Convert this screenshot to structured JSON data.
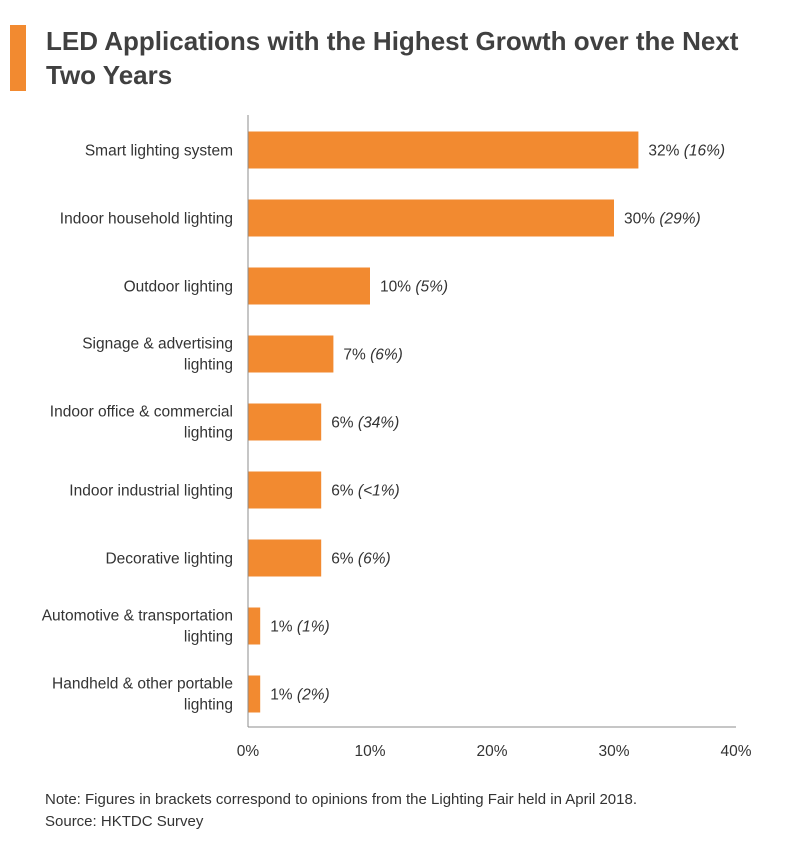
{
  "colors": {
    "accent": "#f28a30",
    "bar": "#f28a30",
    "axis": "#8c8c8c",
    "text": "#333333"
  },
  "title": "LED Applications with the Highest Growth over the Next Two Years",
  "chart_data": {
    "type": "bar",
    "orientation": "horizontal",
    "title": "LED Applications with the Highest Growth over the Next Two Years",
    "xlabel": "",
    "ylabel": "",
    "xlim": [
      0,
      40
    ],
    "xticks": [
      "0%",
      "10%",
      "20%",
      "30%",
      "40%"
    ],
    "grid": false,
    "categories": [
      [
        "Smart lighting system"
      ],
      [
        "Indoor household lighting"
      ],
      [
        "Outdoor lighting"
      ],
      [
        "Signage & advertising",
        "lighting"
      ],
      [
        "Indoor office & commercial",
        "lighting"
      ],
      [
        "Indoor industrial lighting"
      ],
      [
        "Decorative lighting"
      ],
      [
        "Automotive & transportation",
        "lighting"
      ],
      [
        "Handheld & other portable",
        "lighting"
      ]
    ],
    "values": [
      32,
      30,
      10,
      7,
      6,
      6,
      6,
      1,
      1
    ],
    "value_labels": [
      "32%",
      "30%",
      "10%",
      "7%",
      "6%",
      "6%",
      "6%",
      "1%",
      "1%"
    ],
    "bracket_labels": [
      "(16%)",
      "(29%)",
      "(5%)",
      "(6%)",
      "(34%)",
      "(<1%)",
      "(6%)",
      "(1%)",
      "(2%)"
    ]
  },
  "notes": {
    "note": "Note: Figures in brackets correspond to opinions from the Lighting Fair held in April 2018.",
    "source": "Source: HKTDC Survey"
  }
}
